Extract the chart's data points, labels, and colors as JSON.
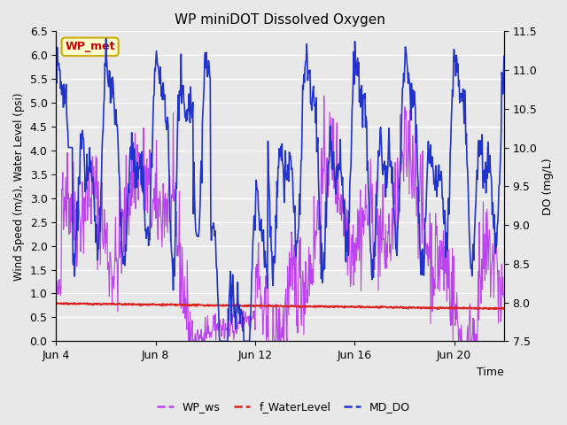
{
  "title": "WP miniDOT Dissolved Oxygen",
  "xlabel": "Time",
  "ylabel_left": "Wind Speed (m/s), Water Level (psi)",
  "ylabel_right": "DO (mg/L)",
  "annotation": "WP_met",
  "annotation_color": "#cc0000",
  "annotation_bg": "#ffffcc",
  "annotation_border": "#ccaa00",
  "xlim_start": 0,
  "xlim_end": 18,
  "ylim_left": [
    0.0,
    6.5
  ],
  "ylim_right": [
    7.5,
    11.5
  ],
  "xtick_labels": [
    "Jun 4",
    "Jun 8",
    "Jun 12",
    "Jun 16",
    "Jun 20"
  ],
  "xtick_positions": [
    0,
    4,
    8,
    12,
    16
  ],
  "ytick_left": [
    0.0,
    0.5,
    1.0,
    1.5,
    2.0,
    2.5,
    3.0,
    3.5,
    4.0,
    4.5,
    5.0,
    5.5,
    6.0,
    6.5
  ],
  "ytick_right": [
    7.5,
    8.0,
    8.5,
    9.0,
    9.5,
    10.0,
    10.5,
    11.0,
    11.5
  ],
  "fig_bg_color": "#e8e8e8",
  "plot_bg_color": "#e8e8e8",
  "grid_color": "#ffffff",
  "legend_items": [
    "WP_ws",
    "f_WaterLevel",
    "MD_DO"
  ],
  "legend_colors": [
    "#bb44ee",
    "#dd2222",
    "#2233cc"
  ],
  "line_colors": {
    "WP_ws": "#bb44ee",
    "f_WaterLevel": "#dd2222",
    "MD_DO": "#2233cc"
  },
  "line_widths": {
    "WP_ws": 0.8,
    "f_WaterLevel": 1.5,
    "MD_DO": 1.2
  },
  "seed": 42
}
